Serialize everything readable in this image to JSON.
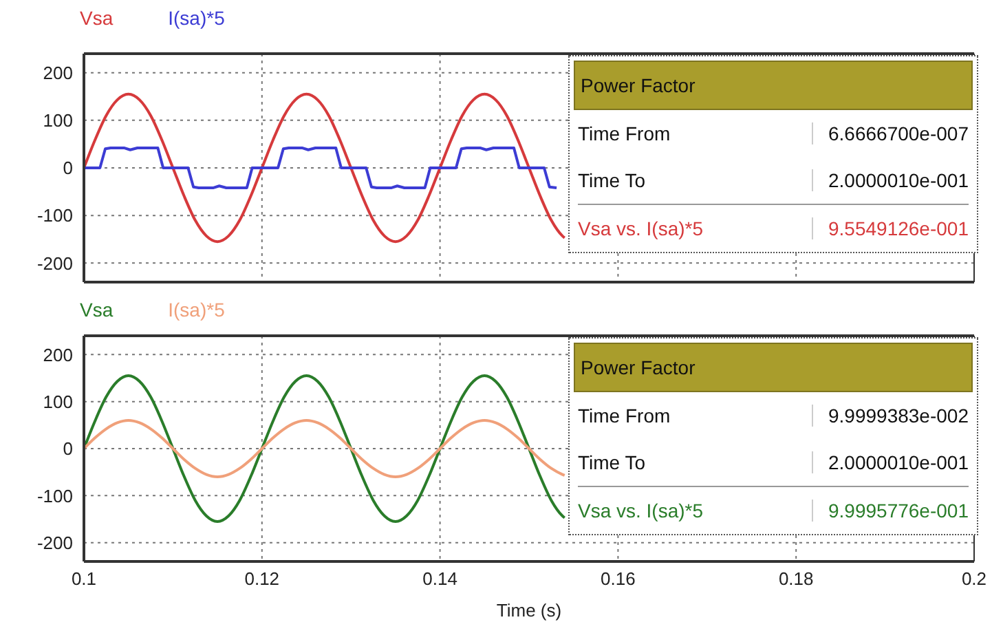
{
  "chart_data": [
    {
      "type": "line",
      "xlim": [
        0.1,
        0.2
      ],
      "xticks": [
        0.1,
        0.12,
        0.14,
        0.16,
        0.18,
        0.2
      ],
      "ylim": [
        -240,
        240
      ],
      "yticks": [
        -200,
        -100,
        0,
        100,
        200
      ],
      "grid": true,
      "legend": "top left",
      "tick_labels": "y",
      "annotations": [
        "Power Factor",
        "Time From",
        "6.6666700e-007",
        "Time To",
        "2.0000010e-001",
        "Vsa vs. I(sa)*5",
        "9.5549126e-001"
      ],
      "x": [
        0.1,
        0.10125,
        0.1025,
        0.10375,
        0.105,
        0.10625,
        0.1075,
        0.10875,
        0.11,
        0.11125,
        0.1125,
        0.11375,
        0.115,
        0.11625,
        0.1175,
        0.11875,
        0.12,
        0.12125,
        0.1225,
        0.12375,
        0.125,
        0.12625,
        0.1275,
        0.12875,
        0.13,
        0.13125,
        0.1325,
        0.13375,
        0.135,
        0.13625,
        0.1375,
        0.13875,
        0.14,
        0.14125,
        0.1425,
        0.14375,
        0.145,
        0.14625,
        0.1475,
        0.14875,
        0.15,
        0.15125,
        0.1525,
        0.15375,
        0.154
      ],
      "series": [
        {
          "name": "Vsa",
          "color": "#d63a3c",
          "values": [
            0,
            59,
            110,
            143,
            155,
            143,
            110,
            59,
            0,
            -59,
            -110,
            -143,
            -155,
            -143,
            -110,
            -59,
            0,
            59,
            110,
            143,
            155,
            143,
            110,
            59,
            0,
            -59,
            -110,
            -143,
            -155,
            -143,
            -110,
            -59,
            0,
            59,
            110,
            143,
            155,
            143,
            110,
            59,
            0,
            -59,
            -110,
            -143,
            -147
          ]
        },
        {
          "name": "I(sa)*5",
          "color": "#3c3cd4",
          "x": [
            0.1,
            0.1018,
            0.1024,
            0.103,
            0.1045,
            0.1052,
            0.106,
            0.1083,
            0.1089,
            0.1117,
            0.1123,
            0.1129,
            0.1145,
            0.1152,
            0.116,
            0.1183,
            0.1189,
            0.1218,
            0.1224,
            0.123,
            0.1245,
            0.1252,
            0.126,
            0.1283,
            0.1289,
            0.1317,
            0.1323,
            0.1329,
            0.1345,
            0.1352,
            0.136,
            0.1383,
            0.1389,
            0.1418,
            0.1424,
            0.143,
            0.1445,
            0.1452,
            0.146,
            0.1483,
            0.1489,
            0.1517,
            0.1523,
            0.1531
          ],
          "values": [
            0,
            0,
            40,
            42,
            42,
            38,
            42,
            42,
            0,
            0,
            -40,
            -42,
            -42,
            -38,
            -42,
            -42,
            0,
            0,
            40,
            42,
            42,
            38,
            42,
            42,
            0,
            0,
            -40,
            -42,
            -42,
            -38,
            -42,
            -42,
            0,
            0,
            40,
            42,
            42,
            38,
            42,
            42,
            0,
            0,
            -40,
            -42
          ]
        }
      ]
    },
    {
      "type": "line",
      "xlabel": "Time (s)",
      "xlim": [
        0.1,
        0.2
      ],
      "xticks": [
        0.1,
        0.12,
        0.14,
        0.16,
        0.18,
        0.2
      ],
      "ylim": [
        -240,
        240
      ],
      "yticks": [
        -200,
        -100,
        0,
        100,
        200
      ],
      "grid": true,
      "legend": "top left",
      "annotations": [
        "Power Factor",
        "Time From",
        "9.9999383e-002",
        "Time To",
        "2.0000010e-001",
        "Vsa vs. I(sa)*5",
        "9.9995776e-001"
      ],
      "x": [
        0.1,
        0.10125,
        0.1025,
        0.10375,
        0.105,
        0.10625,
        0.1075,
        0.10875,
        0.11,
        0.11125,
        0.1125,
        0.11375,
        0.115,
        0.11625,
        0.1175,
        0.11875,
        0.12,
        0.12125,
        0.1225,
        0.12375,
        0.125,
        0.12625,
        0.1275,
        0.12875,
        0.13,
        0.13125,
        0.1325,
        0.13375,
        0.135,
        0.13625,
        0.1375,
        0.13875,
        0.14,
        0.14125,
        0.1425,
        0.14375,
        0.145,
        0.14625,
        0.1475,
        0.14875,
        0.15,
        0.15125,
        0.1525,
        0.15375,
        0.154
      ],
      "series": [
        {
          "name": "Vsa",
          "color": "#2a7d2a",
          "values": [
            0,
            59,
            110,
            143,
            155,
            143,
            110,
            59,
            0,
            -59,
            -110,
            -143,
            -155,
            -143,
            -110,
            -59,
            0,
            59,
            110,
            143,
            155,
            143,
            110,
            59,
            0,
            -59,
            -110,
            -143,
            -155,
            -143,
            -110,
            -59,
            0,
            59,
            110,
            143,
            155,
            143,
            110,
            59,
            0,
            -59,
            -110,
            -143,
            -147
          ]
        },
        {
          "name": "I(sa)*5",
          "color": "#f0a07a",
          "values": [
            0,
            23,
            42,
            55,
            60,
            55,
            42,
            23,
            0,
            -23,
            -42,
            -55,
            -60,
            -55,
            -42,
            -23,
            0,
            23,
            42,
            55,
            60,
            55,
            42,
            23,
            0,
            -23,
            -42,
            -55,
            -60,
            -55,
            -42,
            -23,
            0,
            23,
            42,
            55,
            60,
            55,
            42,
            23,
            0,
            -23,
            -42,
            -55,
            -57
          ]
        }
      ]
    }
  ]
}
